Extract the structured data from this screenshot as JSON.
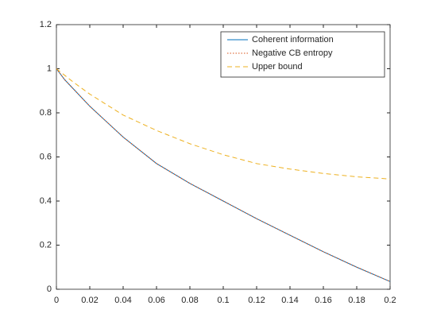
{
  "chart_data": {
    "type": "line",
    "x": [
      0,
      0.005,
      0.01,
      0.02,
      0.04,
      0.06,
      0.08,
      0.1,
      0.12,
      0.14,
      0.16,
      0.18,
      0.2
    ],
    "series": [
      {
        "name": "Coherent information",
        "color": "#0072bd",
        "style": "solid",
        "values": [
          1,
          0.95,
          0.91,
          0.83,
          0.69,
          0.57,
          0.48,
          0.4,
          0.32,
          0.245,
          0.17,
          0.1,
          0.035
        ]
      },
      {
        "name": "Negative CB entropy",
        "color": "#d95319",
        "style": "dotted",
        "values": [
          1,
          0.95,
          0.91,
          0.83,
          0.69,
          0.57,
          0.48,
          0.4,
          0.32,
          0.245,
          0.17,
          0.1,
          0.035
        ]
      },
      {
        "name": "Upper bound",
        "color": "#edb120",
        "style": "dashed",
        "values": [
          1,
          0.97,
          0.94,
          0.885,
          0.79,
          0.72,
          0.66,
          0.61,
          0.57,
          0.545,
          0.525,
          0.51,
          0.5
        ]
      }
    ],
    "xlim": [
      0,
      0.2
    ],
    "xticks": [
      0,
      0.02,
      0.04,
      0.06,
      0.08,
      0.1,
      0.12,
      0.14,
      0.16,
      0.18,
      0.2
    ],
    "ylim": [
      0,
      1.2
    ],
    "yticks": [
      0,
      0.2,
      0.4,
      0.6,
      0.8,
      1,
      1.2
    ],
    "grid": false,
    "legend": "northeast"
  }
}
